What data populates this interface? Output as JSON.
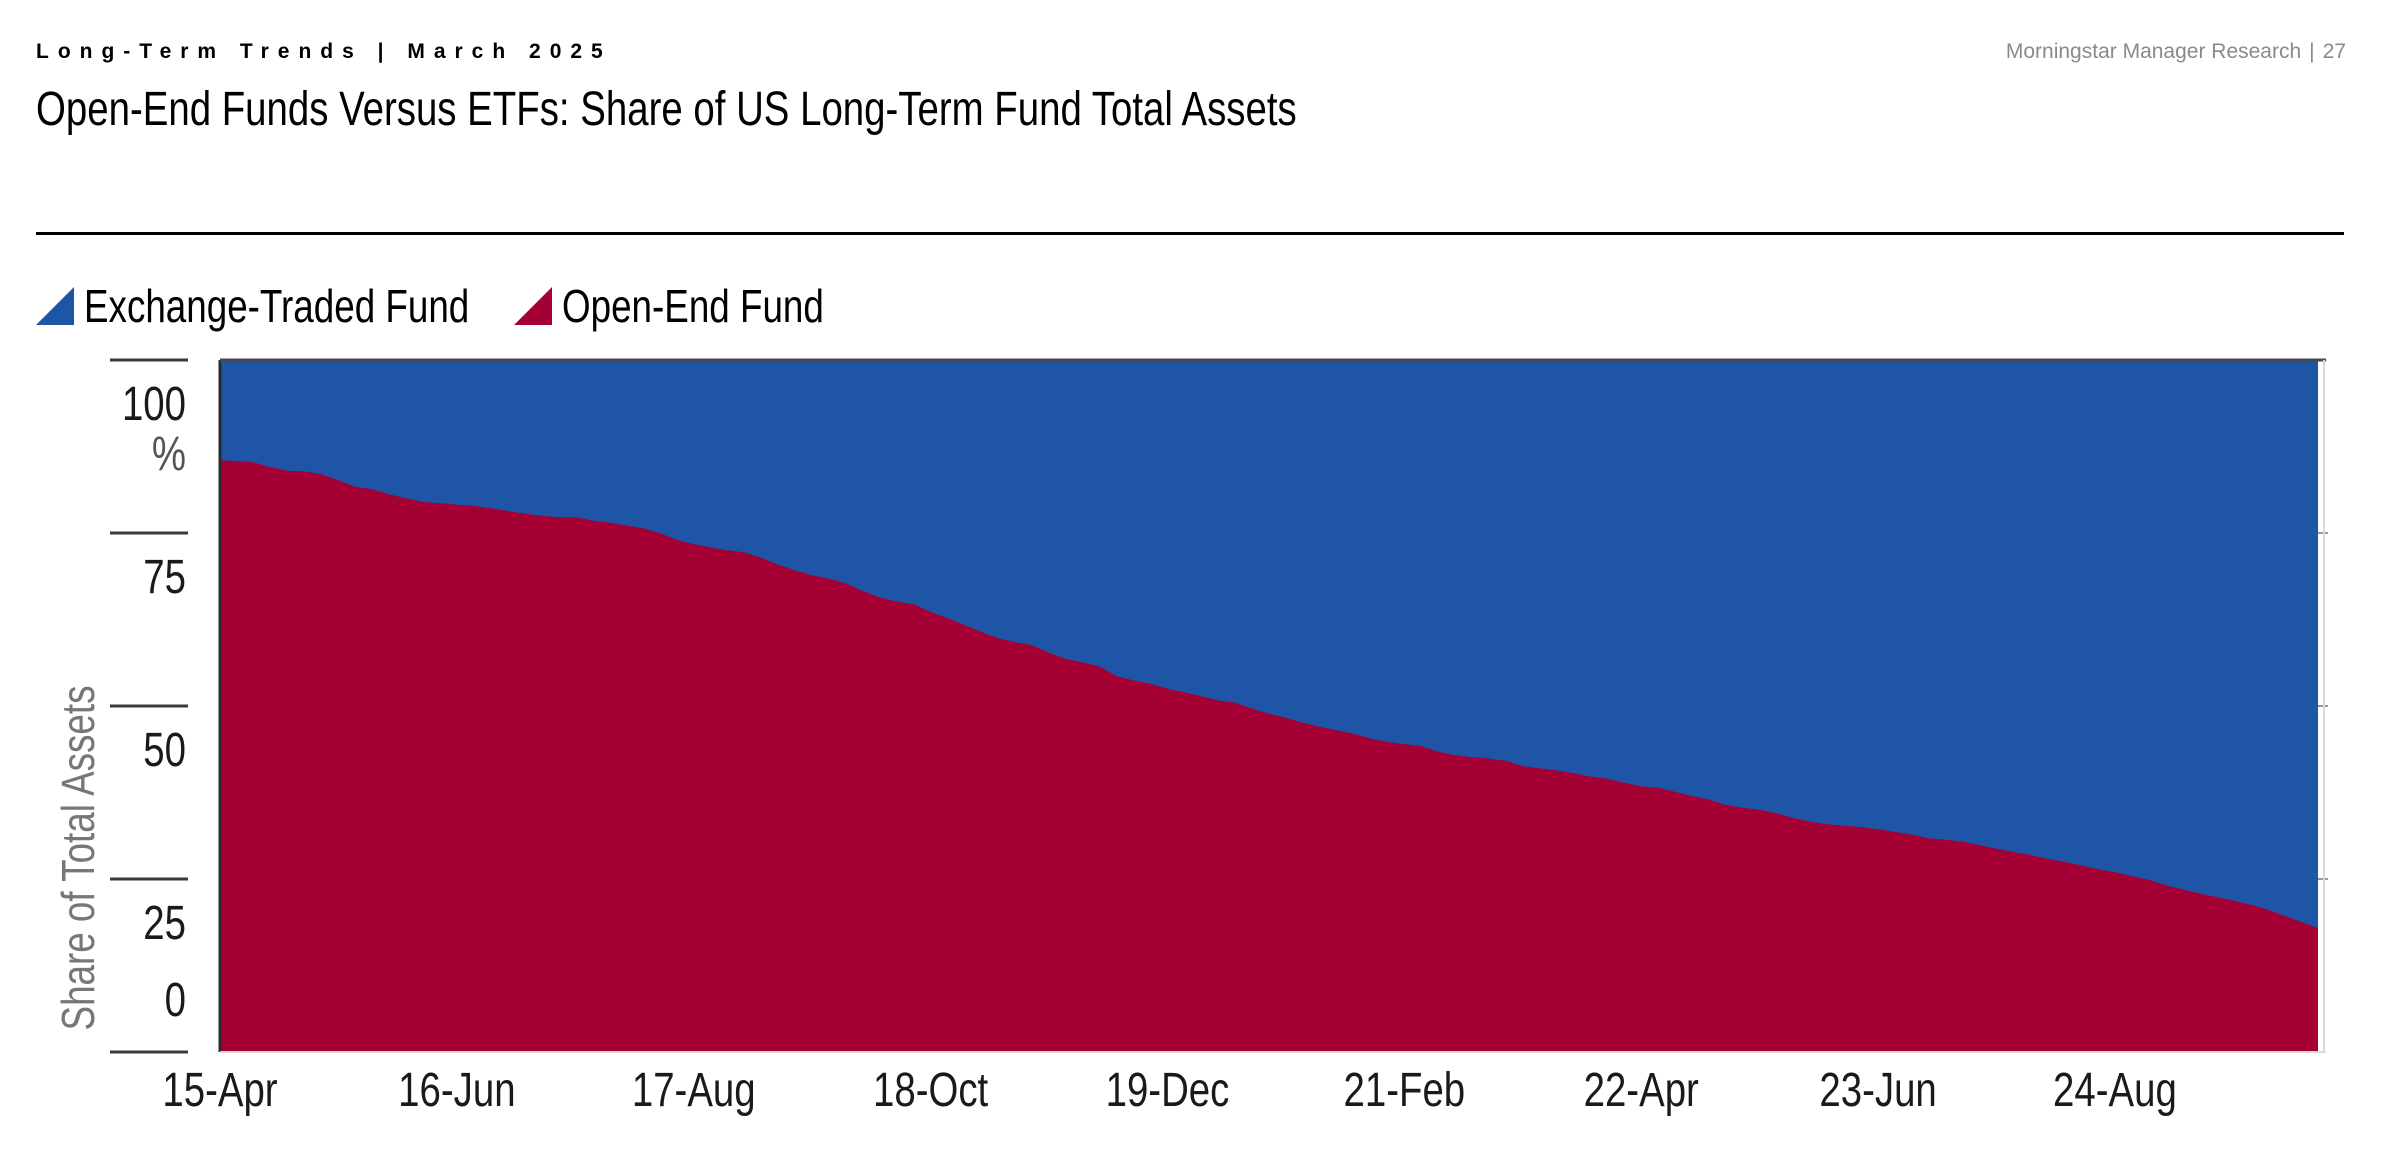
{
  "header": {
    "kicker": "Long-Term Trends | March 2025",
    "source": "Morningstar Manager Research",
    "page_number": "27",
    "title": "Open-End Funds Versus ETFs: Share of US Long-Term Fund Total Assets"
  },
  "colors": {
    "etf": "#1f55a6",
    "open_end": "#a50034"
  },
  "chart_data": {
    "type": "area",
    "stacked": true,
    "title": "",
    "xlabel": "",
    "ylabel": "Share of Total Assets",
    "ylim": [
      0,
      100
    ],
    "yticks": [
      "0",
      "25",
      "50",
      "75",
      "100\n%"
    ],
    "ytick_values": [
      0,
      25,
      50,
      75,
      100
    ],
    "x_tick_labels": [
      "15-Apr",
      "16-Jun",
      "17-Aug",
      "18-Oct",
      "19-Dec",
      "21-Feb",
      "22-Apr",
      "23-Jun",
      "24-Aug"
    ],
    "x_tick_positions": [
      0,
      14,
      28,
      42,
      56,
      70,
      84,
      98,
      112
    ],
    "legend": "top-left",
    "series": [
      {
        "name": "Exchange-Traded Fund",
        "values": [
          14.5,
          14.6,
          14.8,
          15.5,
          16.0,
          16.1,
          16.5,
          17.4,
          18.3,
          18.7,
          19.4,
          20.0,
          20.5,
          20.7,
          20.9,
          21.1,
          21.4,
          21.8,
          22.2,
          22.5,
          22.7,
          22.7,
          23.2,
          23.5,
          23.9,
          24.3,
          25.0,
          26.0,
          26.6,
          27.1,
          27.5,
          27.8,
          28.6,
          29.6,
          30.4,
          31.1,
          31.6,
          32.3,
          33.4,
          34.3,
          34.9,
          35.3,
          36.4,
          37.3,
          38.3,
          39.3,
          40.2,
          40.8,
          41.2,
          42.3,
          43.2,
          43.7,
          44.3,
          45.7,
          46.3,
          46.8,
          47.5,
          48.0,
          48.6,
          49.2,
          49.5,
          50.4,
          51.1,
          51.7,
          52.4,
          53.0,
          53.5,
          54.0,
          54.7,
          55.2,
          55.5,
          55.8,
          56.6,
          57.1,
          57.4,
          57.6,
          57.9,
          58.7,
          59.0,
          59.3,
          59.7,
          60.2,
          60.5,
          61.1,
          61.6,
          61.8,
          62.4,
          63.0,
          63.5,
          64.3,
          64.7,
          65.0,
          65.5,
          66.2,
          66.7,
          67.1,
          67.3,
          67.5,
          67.8,
          68.2,
          68.6,
          69.1,
          69.3,
          69.6,
          70.1,
          70.6,
          71.1,
          71.5,
          72.1,
          72.5,
          73.0,
          73.6,
          74.0,
          74.6,
          75.1,
          75.9,
          76.5,
          77.1,
          77.6,
          78.1,
          78.7,
          79.4,
          80.3,
          81.2,
          82.1
        ],
        "color": "#1f55a6"
      },
      {
        "name": "Open-End Fund",
        "values": [
          85.5,
          85.4,
          85.2,
          84.5,
          84.0,
          83.9,
          83.5,
          82.6,
          81.7,
          81.3,
          80.6,
          80.0,
          79.5,
          79.3,
          79.1,
          78.9,
          78.6,
          78.2,
          77.8,
          77.5,
          77.3,
          77.3,
          76.8,
          76.5,
          76.1,
          75.7,
          75.0,
          74.0,
          73.4,
          72.9,
          72.5,
          72.2,
          71.4,
          70.4,
          69.6,
          68.9,
          68.4,
          67.7,
          66.6,
          65.7,
          65.1,
          64.7,
          63.6,
          62.7,
          61.7,
          60.7,
          59.8,
          59.2,
          58.8,
          57.7,
          56.8,
          56.3,
          55.7,
          54.3,
          53.7,
          53.2,
          52.5,
          52.0,
          51.4,
          50.8,
          50.5,
          49.6,
          48.9,
          48.3,
          47.6,
          47.0,
          46.5,
          46.0,
          45.3,
          44.8,
          44.5,
          44.2,
          43.4,
          42.9,
          42.6,
          42.4,
          42.1,
          41.3,
          41.0,
          40.7,
          40.3,
          39.8,
          39.5,
          38.9,
          38.4,
          38.2,
          37.6,
          37.0,
          36.5,
          35.7,
          35.3,
          35.0,
          34.5,
          33.8,
          33.3,
          32.9,
          32.7,
          32.5,
          32.2,
          31.8,
          31.4,
          30.9,
          30.7,
          30.4,
          29.9,
          29.4,
          28.9,
          28.5,
          27.9,
          27.5,
          27.0,
          26.4,
          26.0,
          25.4,
          24.9,
          24.1,
          23.5,
          22.9,
          22.4,
          21.9,
          21.3,
          20.6,
          19.7,
          18.8,
          17.9
        ],
        "color": "#a50034"
      }
    ]
  }
}
